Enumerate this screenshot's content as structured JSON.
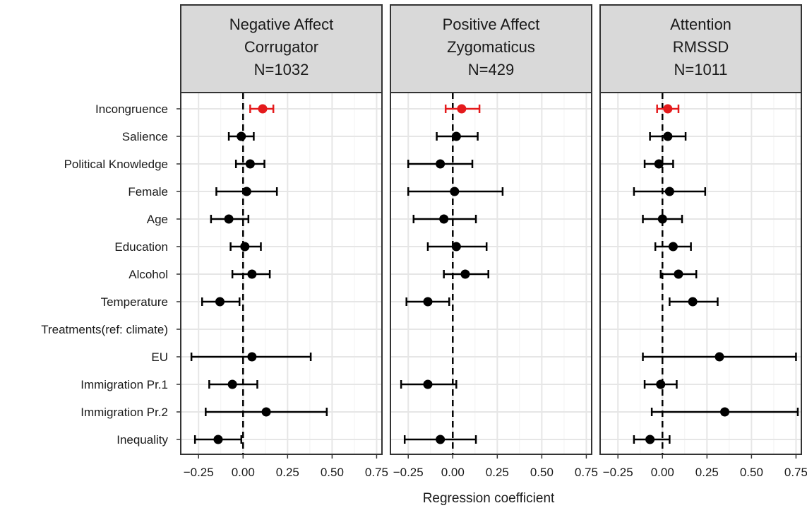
{
  "chart_data": {
    "type": "scatter",
    "subtype": "coefficient-plot-with-error-bars",
    "xlabel": "Regression coefficient",
    "xlim": [
      -0.35,
      0.78
    ],
    "xticks": [
      -0.25,
      0.0,
      0.25,
      0.5,
      0.75
    ],
    "xtick_labels": [
      "−0.25",
      "0.00",
      "0.25",
      "0.50",
      "0.75"
    ],
    "grid": true,
    "categories": [
      "Incongruence",
      "Salience",
      "Political Knowledge",
      "Female",
      "Age",
      "Education",
      "Alcohol",
      "Temperature",
      "Treatments(ref: climate)",
      "EU",
      "Immigration Pr.1",
      "Immigration Pr.2",
      "Inequality"
    ],
    "highlight_color": "#e41a1c",
    "point_color": "#000000",
    "panels": [
      {
        "title_lines": [
          "Negative Affect",
          "Corrugator",
          "N=1032"
        ],
        "points": [
          {
            "estimate": 0.11,
            "low": 0.04,
            "high": 0.17,
            "highlight": true
          },
          {
            "estimate": -0.01,
            "low": -0.08,
            "high": 0.06
          },
          {
            "estimate": 0.04,
            "low": -0.04,
            "high": 0.12
          },
          {
            "estimate": 0.02,
            "low": -0.15,
            "high": 0.19
          },
          {
            "estimate": -0.08,
            "low": -0.18,
            "high": 0.03
          },
          {
            "estimate": 0.01,
            "low": -0.07,
            "high": 0.1
          },
          {
            "estimate": 0.05,
            "low": -0.06,
            "high": 0.15
          },
          {
            "estimate": -0.13,
            "low": -0.23,
            "high": -0.02
          },
          null,
          {
            "estimate": 0.05,
            "low": -0.29,
            "high": 0.38
          },
          {
            "estimate": -0.06,
            "low": -0.19,
            "high": 0.08
          },
          {
            "estimate": 0.13,
            "low": -0.21,
            "high": 0.47
          },
          {
            "estimate": -0.14,
            "low": -0.27,
            "high": -0.01
          }
        ]
      },
      {
        "title_lines": [
          "Positive Affect",
          "Zygomaticus",
          "N=429"
        ],
        "points": [
          {
            "estimate": 0.05,
            "low": -0.04,
            "high": 0.15,
            "highlight": true
          },
          {
            "estimate": 0.02,
            "low": -0.09,
            "high": 0.14
          },
          {
            "estimate": -0.07,
            "low": -0.25,
            "high": 0.11
          },
          {
            "estimate": 0.01,
            "low": -0.25,
            "high": 0.28
          },
          {
            "estimate": -0.05,
            "low": -0.22,
            "high": 0.13
          },
          {
            "estimate": 0.02,
            "low": -0.14,
            "high": 0.19
          },
          {
            "estimate": 0.07,
            "low": -0.05,
            "high": 0.2
          },
          {
            "estimate": -0.14,
            "low": -0.26,
            "high": -0.02
          },
          null,
          null,
          {
            "estimate": -0.14,
            "low": -0.29,
            "high": 0.02
          },
          null,
          {
            "estimate": -0.07,
            "low": -0.27,
            "high": 0.13
          }
        ]
      },
      {
        "title_lines": [
          "Attention",
          "RMSSD",
          "N=1011"
        ],
        "points": [
          {
            "estimate": 0.03,
            "low": -0.03,
            "high": 0.09,
            "highlight": true
          },
          {
            "estimate": 0.03,
            "low": -0.07,
            "high": 0.13
          },
          {
            "estimate": -0.02,
            "low": -0.1,
            "high": 0.06
          },
          {
            "estimate": 0.04,
            "low": -0.16,
            "high": 0.24
          },
          {
            "estimate": 0.0,
            "low": -0.11,
            "high": 0.11
          },
          {
            "estimate": 0.06,
            "low": -0.04,
            "high": 0.16
          },
          {
            "estimate": 0.09,
            "low": -0.01,
            "high": 0.19
          },
          {
            "estimate": 0.17,
            "low": 0.04,
            "high": 0.31
          },
          null,
          {
            "estimate": 0.32,
            "low": -0.11,
            "high": 0.75
          },
          {
            "estimate": -0.01,
            "low": -0.1,
            "high": 0.08
          },
          {
            "estimate": 0.35,
            "low": -0.06,
            "high": 0.76
          },
          {
            "estimate": -0.07,
            "low": -0.16,
            "high": 0.04
          }
        ]
      }
    ]
  }
}
